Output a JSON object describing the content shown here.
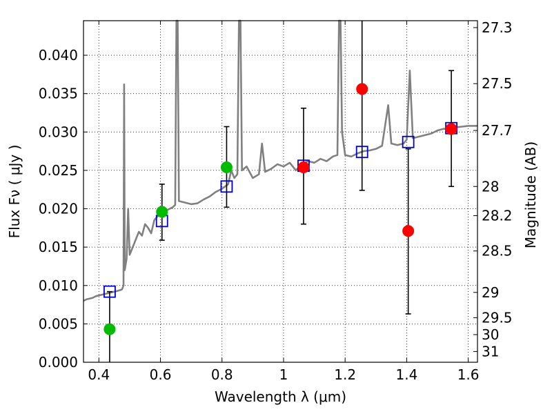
{
  "chart_data": {
    "type": "scatter",
    "xlabel": "Wavelength  λ (μm)",
    "ylabel": "Flux  Fν  ( μJy )",
    "y2label": "Magnitude (AB)",
    "xlim": [
      0.35,
      1.63
    ],
    "ylim": [
      0.0,
      0.0445
    ],
    "grid": true,
    "xticks": [
      0.4,
      0.6,
      0.8,
      1.0,
      1.2,
      1.4,
      1.6
    ],
    "xtick_labels": [
      "0.4",
      "0.6",
      "0.8",
      "1",
      "1.2",
      "1.4",
      "1.6"
    ],
    "yticks": [
      0.0,
      0.005,
      0.01,
      0.015,
      0.02,
      0.025,
      0.03,
      0.035,
      0.04
    ],
    "ytick_labels": [
      "0.000",
      "0.005",
      "0.010",
      "0.015",
      "0.020",
      "0.025",
      "0.030",
      "0.035",
      "0.040"
    ],
    "mag_ticks": [
      {
        "label": "27.3",
        "flux": 0.0436
      },
      {
        "label": "27.5",
        "flux": 0.0363
      },
      {
        "label": "27.7",
        "flux": 0.0302
      },
      {
        "label": "28",
        "flux": 0.0229
      },
      {
        "label": "28.2",
        "flux": 0.0191
      },
      {
        "label": "28.5",
        "flux": 0.0145
      },
      {
        "label": "29",
        "flux": 0.0091
      },
      {
        "label": "29.5",
        "flux": 0.0058
      },
      {
        "label": "30",
        "flux": 0.0036
      },
      {
        "label": "31",
        "flux": 0.0014
      }
    ],
    "spectrum": {
      "color": "#808080",
      "points": [
        [
          0.35,
          0.008
        ],
        [
          0.36,
          0.0082
        ],
        [
          0.37,
          0.0083
        ],
        [
          0.38,
          0.0084
        ],
        [
          0.39,
          0.0086
        ],
        [
          0.4,
          0.0087
        ],
        [
          0.41,
          0.0088
        ],
        [
          0.42,
          0.0089
        ],
        [
          0.43,
          0.009
        ],
        [
          0.44,
          0.0091
        ],
        [
          0.45,
          0.0092
        ],
        [
          0.46,
          0.0093
        ],
        [
          0.47,
          0.0094
        ],
        [
          0.475,
          0.0095
        ],
        [
          0.48,
          0.01
        ],
        [
          0.482,
          0.0362
        ],
        [
          0.484,
          0.012
        ],
        [
          0.49,
          0.0135
        ],
        [
          0.495,
          0.02
        ],
        [
          0.5,
          0.014
        ],
        [
          0.51,
          0.015
        ],
        [
          0.52,
          0.016
        ],
        [
          0.53,
          0.017
        ],
        [
          0.54,
          0.0165
        ],
        [
          0.55,
          0.018
        ],
        [
          0.56,
          0.0175
        ],
        [
          0.57,
          0.0168
        ],
        [
          0.58,
          0.0185
        ],
        [
          0.59,
          0.019
        ],
        [
          0.6,
          0.0192
        ],
        [
          0.62,
          0.0198
        ],
        [
          0.64,
          0.0202
        ],
        [
          0.648,
          0.0205
        ],
        [
          0.652,
          0.0445
        ],
        [
          0.656,
          0.0445
        ],
        [
          0.66,
          0.021
        ],
        [
          0.68,
          0.0208
        ],
        [
          0.7,
          0.0206
        ],
        [
          0.72,
          0.0207
        ],
        [
          0.74,
          0.0212
        ],
        [
          0.76,
          0.0216
        ],
        [
          0.78,
          0.0222
        ],
        [
          0.8,
          0.0226
        ],
        [
          0.82,
          0.0232
        ],
        [
          0.83,
          0.025
        ],
        [
          0.84,
          0.024
        ],
        [
          0.85,
          0.0245
        ],
        [
          0.855,
          0.0445
        ],
        [
          0.86,
          0.0445
        ],
        [
          0.865,
          0.025
        ],
        [
          0.88,
          0.0255
        ],
        [
          0.9,
          0.024
        ],
        [
          0.92,
          0.0245
        ],
        [
          0.93,
          0.0285
        ],
        [
          0.94,
          0.0248
        ],
        [
          0.96,
          0.0252
        ],
        [
          0.98,
          0.0258
        ],
        [
          1.0,
          0.0255
        ],
        [
          1.02,
          0.026
        ],
        [
          1.04,
          0.025
        ],
        [
          1.06,
          0.0258
        ],
        [
          1.08,
          0.0262
        ],
        [
          1.1,
          0.026
        ],
        [
          1.12,
          0.0265
        ],
        [
          1.14,
          0.0262
        ],
        [
          1.16,
          0.0268
        ],
        [
          1.175,
          0.027
        ],
        [
          1.18,
          0.0445
        ],
        [
          1.185,
          0.0445
        ],
        [
          1.19,
          0.03
        ],
        [
          1.2,
          0.027
        ],
        [
          1.22,
          0.0268
        ],
        [
          1.24,
          0.0272
        ],
        [
          1.26,
          0.0275
        ],
        [
          1.28,
          0.0276
        ],
        [
          1.3,
          0.0278
        ],
        [
          1.32,
          0.0282
        ],
        [
          1.34,
          0.0335
        ],
        [
          1.35,
          0.0285
        ],
        [
          1.37,
          0.0283
        ],
        [
          1.39,
          0.0285
        ],
        [
          1.4,
          0.029
        ],
        [
          1.41,
          0.038
        ],
        [
          1.42,
          0.0292
        ],
        [
          1.44,
          0.0294
        ],
        [
          1.46,
          0.0296
        ],
        [
          1.48,
          0.0298
        ],
        [
          1.5,
          0.0302
        ],
        [
          1.52,
          0.0304
        ],
        [
          1.54,
          0.0305
        ],
        [
          1.56,
          0.0306
        ],
        [
          1.58,
          0.0307
        ],
        [
          1.6,
          0.0308
        ],
        [
          1.63,
          0.0308
        ]
      ]
    },
    "model_points": {
      "color": "#0000cc",
      "points": [
        [
          0.435,
          0.0092
        ],
        [
          0.605,
          0.0184
        ],
        [
          0.815,
          0.0229
        ],
        [
          1.065,
          0.0256
        ],
        [
          1.255,
          0.0274
        ],
        [
          1.405,
          0.0287
        ],
        [
          1.545,
          0.0305
        ]
      ]
    },
    "observed_green": {
      "color": "#00bb00",
      "points": [
        {
          "x": 0.435,
          "y": 0.0043,
          "yerr_low": 0.0,
          "yerr_high": 0.0092
        },
        {
          "x": 0.605,
          "y": 0.0196,
          "yerr_low": 0.0159,
          "yerr_high": 0.0232
        },
        {
          "x": 0.815,
          "y": 0.0254,
          "yerr_low": 0.0202,
          "yerr_high": 0.0307
        }
      ]
    },
    "observed_red": {
      "color": "#ff0000",
      "points": [
        {
          "x": 1.065,
          "y": 0.0254,
          "yerr_low": 0.018,
          "yerr_high": 0.0331
        },
        {
          "x": 1.255,
          "y": 0.0356,
          "yerr_low": 0.0224,
          "yerr_high": 0.0445
        },
        {
          "x": 1.405,
          "y": 0.0171,
          "yerr_low": 0.0063,
          "yerr_high": 0.0278
        },
        {
          "x": 1.545,
          "y": 0.0304,
          "yerr_low": 0.0229,
          "yerr_high": 0.038
        }
      ]
    }
  }
}
